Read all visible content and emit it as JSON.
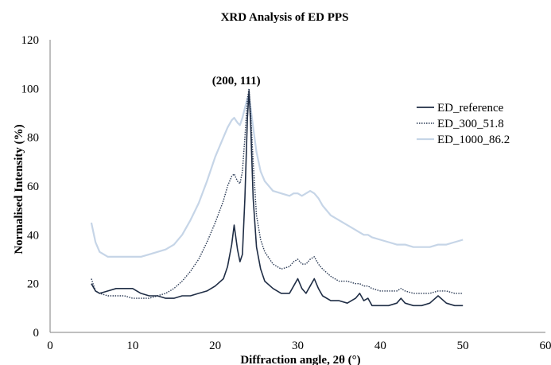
{
  "chart_data": {
    "type": "line",
    "title": "XRD Analysis of ED PPS",
    "xlabel": "Diffraction angle, 2θ (°)",
    "ylabel": "Normalised Intensity (%)",
    "xlim": [
      0,
      60
    ],
    "ylim": [
      0,
      120
    ],
    "x_ticks": [
      0,
      10,
      20,
      30,
      40,
      50,
      60
    ],
    "x_tick_labels": [
      "0",
      "10",
      "20",
      "30",
      "40",
      "50",
      "60"
    ],
    "y_ticks": [
      0,
      20,
      40,
      60,
      80,
      100,
      120
    ],
    "y_tick_labels": [
      "0",
      "20",
      "40",
      "60",
      "80",
      "100",
      "120"
    ],
    "grid": false,
    "legend_position": "right",
    "annotation": {
      "text": "(200, 111)",
      "x": 24,
      "y": 103
    },
    "series": [
      {
        "name": "ED_reference",
        "color": "#1f2d45",
        "style": "solid",
        "x": [
          5,
          5.5,
          6,
          7,
          8,
          9,
          10,
          11,
          12,
          13,
          14,
          15,
          16,
          17,
          18,
          19,
          20,
          21,
          21.5,
          22,
          22.3,
          22.7,
          23,
          23.3,
          23.6,
          23.9,
          24.1,
          24.3,
          24.6,
          25,
          25.5,
          26,
          27,
          28,
          29,
          29.5,
          30,
          30.5,
          31,
          31.5,
          32,
          32.5,
          33,
          34,
          35,
          36,
          37,
          37.5,
          38,
          38.5,
          39,
          40,
          41,
          42,
          42.5,
          43,
          44,
          45,
          46,
          47,
          48,
          49,
          50
        ],
        "y": [
          20,
          17,
          16,
          17,
          18,
          18,
          18,
          16,
          15,
          15,
          14,
          14,
          15,
          15,
          16,
          17,
          19,
          22,
          27,
          36,
          44,
          34,
          29,
          32,
          55,
          88,
          99,
          85,
          55,
          35,
          26,
          21,
          18,
          16,
          16,
          19,
          22,
          18,
          16,
          19,
          22,
          18,
          15,
          13,
          13,
          12,
          14,
          16,
          13,
          14,
          11,
          11,
          11,
          12,
          14,
          12,
          11,
          11,
          12,
          15,
          12,
          11,
          11
        ]
      },
      {
        "name": "ED_300_51.8",
        "color": "#2a3a55",
        "style": "dotted",
        "x": [
          5,
          5.5,
          6,
          7,
          8,
          9,
          10,
          11,
          12,
          13,
          14,
          15,
          16,
          17,
          18,
          19,
          20,
          21,
          21.5,
          22,
          22.3,
          22.7,
          23,
          23.3,
          23.6,
          23.9,
          24.1,
          24.3,
          24.6,
          25,
          25.5,
          26,
          27,
          28,
          29,
          29.5,
          30,
          30.5,
          31,
          31.5,
          32,
          32.5,
          33,
          34,
          35,
          36,
          37,
          37.5,
          38,
          38.5,
          39,
          40,
          41,
          42,
          42.5,
          43,
          44,
          45,
          46,
          47,
          48,
          49,
          50
        ],
        "y": [
          22,
          17,
          16,
          15,
          15,
          15,
          14,
          14,
          14,
          15,
          16,
          18,
          21,
          25,
          30,
          37,
          45,
          54,
          60,
          64,
          65,
          62,
          61,
          66,
          80,
          96,
          100,
          90,
          70,
          48,
          38,
          33,
          28,
          26,
          27,
          29,
          30,
          28,
          28,
          30,
          31,
          28,
          26,
          23,
          21,
          21,
          20,
          20,
          19,
          19,
          18,
          17,
          17,
          17,
          18,
          17,
          16,
          16,
          16,
          17,
          17,
          16,
          16
        ]
      },
      {
        "name": "ED_1000_86.2",
        "color": "#c6d5e7",
        "style": "solid",
        "x": [
          5,
          5.5,
          6,
          7,
          8,
          9,
          10,
          11,
          12,
          13,
          14,
          15,
          16,
          17,
          18,
          19,
          20,
          21,
          21.5,
          22,
          22.3,
          22.7,
          23,
          23.3,
          23.6,
          23.9,
          24.1,
          24.3,
          24.6,
          25,
          25.5,
          26,
          27,
          28,
          29,
          29.5,
          30,
          30.5,
          31,
          31.5,
          32,
          32.5,
          33,
          34,
          35,
          36,
          37,
          37.5,
          38,
          38.5,
          39,
          40,
          41,
          42,
          42.5,
          43,
          44,
          45,
          46,
          47,
          48,
          49,
          50
        ],
        "y": [
          45,
          37,
          33,
          31,
          31,
          31,
          31,
          31,
          32,
          33,
          34,
          36,
          40,
          46,
          53,
          62,
          72,
          80,
          84,
          87,
          88,
          86,
          85,
          88,
          92,
          96,
          97,
          92,
          84,
          74,
          66,
          62,
          58,
          57,
          56,
          57,
          57,
          56,
          57,
          58,
          57,
          55,
          52,
          48,
          46,
          44,
          42,
          41,
          40,
          40,
          39,
          38,
          37,
          36,
          36,
          36,
          35,
          35,
          35,
          36,
          36,
          37,
          38
        ]
      }
    ]
  }
}
